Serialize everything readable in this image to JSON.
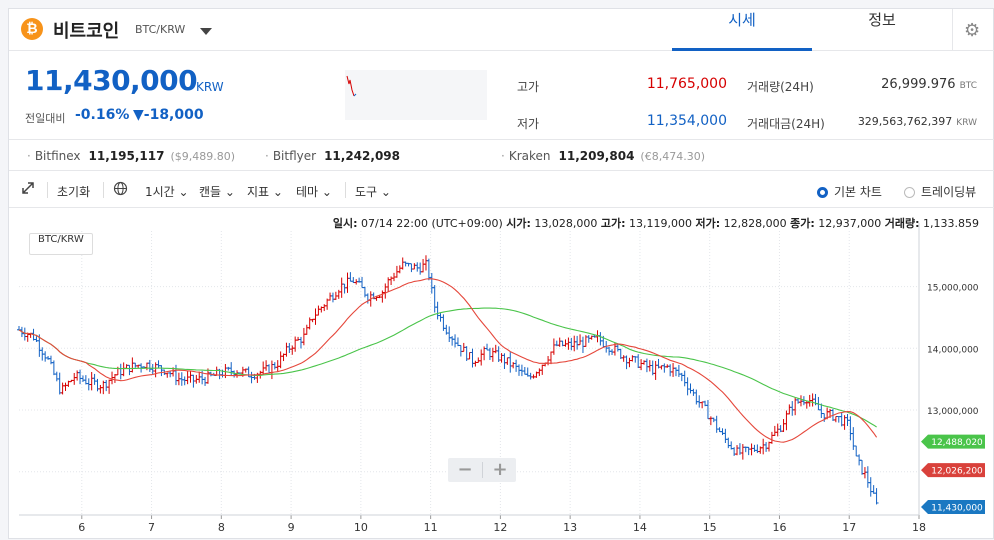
{
  "header": {
    "coin_symbol": "₿",
    "coin_name": "비트코인",
    "pair": "BTC/KRW",
    "tabs": [
      {
        "label": "시세",
        "active": true
      },
      {
        "label": "정보",
        "active": false
      }
    ],
    "settings_icon": "gear-icon",
    "settings_glyph": "⚙"
  },
  "price": {
    "current": "11,430,000",
    "unit": "KRW",
    "change_label": "전일대비",
    "change_rate": "-0.16%",
    "change_amount": "▼-18,000",
    "stats": {
      "high_label": "고가",
      "high": "11,765,000",
      "low_label": "저가",
      "low": "11,354,000",
      "volume_label": "거래량(24H)",
      "volume": "26,999.976",
      "volume_unit": "BTC",
      "value_label": "거래대금(24H)",
      "value": "329,563,762,397",
      "value_unit": "KRW"
    }
  },
  "exchanges": [
    {
      "name": "Bitfinex",
      "price": "11,195,117",
      "sub": "($9,489.80)"
    },
    {
      "name": "Bitflyer",
      "price": "11,242,098",
      "sub": ""
    },
    {
      "name": "Kraken",
      "price": "11,209,804",
      "sub": "(€8,474.30)"
    }
  ],
  "toolbar": {
    "fullscreen_icon": "expand-icon",
    "reset": "초기화",
    "globe_icon": "globe-icon",
    "interval": "1시간",
    "candle": "캔들",
    "indicator": "지표",
    "theme": "테마",
    "tools": "도구",
    "chart_basic": "기본 차트",
    "chart_tradingview": "트레이딩뷰",
    "chart_mode": "basic"
  },
  "ohlc": {
    "time_label": "일시:",
    "time": "07/14 22:00 (UTC+09:00)",
    "open_label": "시가:",
    "open": "13,028,000",
    "high_label": "고가:",
    "high": "13,119,000",
    "low_label": "저가:",
    "low": "12,828,000",
    "close_label": "종가:",
    "close": "12,937,000",
    "volume_label": "거래량:",
    "volume": "1,133.859"
  },
  "pair_tag": "BTC/KRW",
  "zoom": {
    "minus": "−",
    "plus": "+"
  },
  "colors": {
    "up": "#d60000",
    "down": "#1261c4",
    "accent": "#1261c4",
    "ma_short": "#e5473b",
    "ma_long": "#4ac44a",
    "badge_green": "#4ac44a",
    "badge_red": "#d9413b",
    "badge_blue": "#1a78c2"
  },
  "chart_data": {
    "type": "ohlc",
    "x_ticks": [
      "6",
      "7",
      "8",
      "9",
      "10",
      "11",
      "12",
      "13",
      "14",
      "15",
      "16",
      "17",
      "18"
    ],
    "x_range": [
      5.1,
      18
    ],
    "y_ticks": [
      12000000,
      13000000,
      14000000,
      15000000
    ],
    "y_tick_labels": [
      "12,000,000",
      "13,000,000",
      "14,000,000",
      "15,000,000"
    ],
    "ylim": [
      11300000,
      15900000
    ],
    "grid": true,
    "price_badges": [
      {
        "label": "12,488,020",
        "value": 12488020,
        "color": "green"
      },
      {
        "label": "12,026,200",
        "value": 12026200,
        "color": "red"
      },
      {
        "label": "11,430,000",
        "value": 11430000,
        "color": "blue"
      }
    ],
    "close_path": [
      [
        5.1,
        14.3
      ],
      [
        5.3,
        14.2
      ],
      [
        5.5,
        13.85
      ],
      [
        5.7,
        13.3
      ],
      [
        5.9,
        13.55
      ],
      [
        6.1,
        13.45
      ],
      [
        6.3,
        13.4
      ],
      [
        6.5,
        13.6
      ],
      [
        6.7,
        13.7
      ],
      [
        6.9,
        13.75
      ],
      [
        7.2,
        13.65
      ],
      [
        7.4,
        13.5
      ],
      [
        7.6,
        13.48
      ],
      [
        7.8,
        13.52
      ],
      [
        8.0,
        13.6
      ],
      [
        8.2,
        13.65
      ],
      [
        8.4,
        13.58
      ],
      [
        8.6,
        13.62
      ],
      [
        8.8,
        13.75
      ],
      [
        9.0,
        14.05
      ],
      [
        9.2,
        14.2
      ],
      [
        9.3,
        14.5
      ],
      [
        9.5,
        14.75
      ],
      [
        9.7,
        15.0
      ],
      [
        9.9,
        15.1
      ],
      [
        10.1,
        14.85
      ],
      [
        10.3,
        14.9
      ],
      [
        10.4,
        15.1
      ],
      [
        10.6,
        15.35
      ],
      [
        10.8,
        15.3
      ],
      [
        10.95,
        15.35
      ],
      [
        11.05,
        14.7
      ],
      [
        11.2,
        14.35
      ],
      [
        11.4,
        14.05
      ],
      [
        11.6,
        13.8
      ],
      [
        11.8,
        13.95
      ],
      [
        12.0,
        13.85
      ],
      [
        12.2,
        13.7
      ],
      [
        12.4,
        13.5
      ],
      [
        12.6,
        13.75
      ],
      [
        12.8,
        14.05
      ],
      [
        13.0,
        14.05
      ],
      [
        13.2,
        14.1
      ],
      [
        13.4,
        14.15
      ],
      [
        13.6,
        14.0
      ],
      [
        13.8,
        13.85
      ],
      [
        14.0,
        13.75
      ],
      [
        14.2,
        13.65
      ],
      [
        14.4,
        13.7
      ],
      [
        14.6,
        13.55
      ],
      [
        14.8,
        13.2
      ],
      [
        15.0,
        12.9
      ],
      [
        15.2,
        12.55
      ],
      [
        15.4,
        12.3
      ],
      [
        15.6,
        12.35
      ],
      [
        15.8,
        12.45
      ],
      [
        16.0,
        12.7
      ],
      [
        16.2,
        13.1
      ],
      [
        16.4,
        13.2
      ],
      [
        16.6,
        12.95
      ],
      [
        16.8,
        12.9
      ],
      [
        17.0,
        12.75
      ],
      [
        17.1,
        12.2
      ],
      [
        17.25,
        11.9
      ],
      [
        17.4,
        11.43
      ]
    ]
  }
}
